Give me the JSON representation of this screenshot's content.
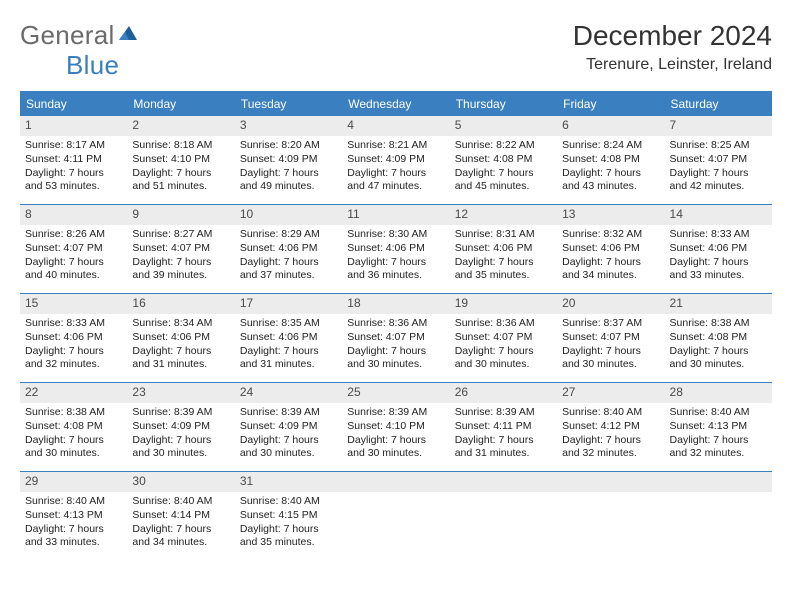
{
  "brand": {
    "part1": "General",
    "part2": "Blue"
  },
  "title": "December 2024",
  "location": "Terenure, Leinster, Ireland",
  "colors": {
    "accent": "#3a7fbf",
    "headerBg": "#3a7fbf",
    "headerText": "#ffffff",
    "dayNumBg": "#ececec",
    "dayNumText": "#4a4a4a",
    "bodyText": "#222222",
    "logoGray": "#6b6b6b"
  },
  "dayNames": [
    "Sunday",
    "Monday",
    "Tuesday",
    "Wednesday",
    "Thursday",
    "Friday",
    "Saturday"
  ],
  "weeks": [
    [
      {
        "n": "1",
        "sunrise": "8:17 AM",
        "sunset": "4:11 PM",
        "daylight": "7 hours and 53 minutes."
      },
      {
        "n": "2",
        "sunrise": "8:18 AM",
        "sunset": "4:10 PM",
        "daylight": "7 hours and 51 minutes."
      },
      {
        "n": "3",
        "sunrise": "8:20 AM",
        "sunset": "4:09 PM",
        "daylight": "7 hours and 49 minutes."
      },
      {
        "n": "4",
        "sunrise": "8:21 AM",
        "sunset": "4:09 PM",
        "daylight": "7 hours and 47 minutes."
      },
      {
        "n": "5",
        "sunrise": "8:22 AM",
        "sunset": "4:08 PM",
        "daylight": "7 hours and 45 minutes."
      },
      {
        "n": "6",
        "sunrise": "8:24 AM",
        "sunset": "4:08 PM",
        "daylight": "7 hours and 43 minutes."
      },
      {
        "n": "7",
        "sunrise": "8:25 AM",
        "sunset": "4:07 PM",
        "daylight": "7 hours and 42 minutes."
      }
    ],
    [
      {
        "n": "8",
        "sunrise": "8:26 AM",
        "sunset": "4:07 PM",
        "daylight": "7 hours and 40 minutes."
      },
      {
        "n": "9",
        "sunrise": "8:27 AM",
        "sunset": "4:07 PM",
        "daylight": "7 hours and 39 minutes."
      },
      {
        "n": "10",
        "sunrise": "8:29 AM",
        "sunset": "4:06 PM",
        "daylight": "7 hours and 37 minutes."
      },
      {
        "n": "11",
        "sunrise": "8:30 AM",
        "sunset": "4:06 PM",
        "daylight": "7 hours and 36 minutes."
      },
      {
        "n": "12",
        "sunrise": "8:31 AM",
        "sunset": "4:06 PM",
        "daylight": "7 hours and 35 minutes."
      },
      {
        "n": "13",
        "sunrise": "8:32 AM",
        "sunset": "4:06 PM",
        "daylight": "7 hours and 34 minutes."
      },
      {
        "n": "14",
        "sunrise": "8:33 AM",
        "sunset": "4:06 PM",
        "daylight": "7 hours and 33 minutes."
      }
    ],
    [
      {
        "n": "15",
        "sunrise": "8:33 AM",
        "sunset": "4:06 PM",
        "daylight": "7 hours and 32 minutes."
      },
      {
        "n": "16",
        "sunrise": "8:34 AM",
        "sunset": "4:06 PM",
        "daylight": "7 hours and 31 minutes."
      },
      {
        "n": "17",
        "sunrise": "8:35 AM",
        "sunset": "4:06 PM",
        "daylight": "7 hours and 31 minutes."
      },
      {
        "n": "18",
        "sunrise": "8:36 AM",
        "sunset": "4:07 PM",
        "daylight": "7 hours and 30 minutes."
      },
      {
        "n": "19",
        "sunrise": "8:36 AM",
        "sunset": "4:07 PM",
        "daylight": "7 hours and 30 minutes."
      },
      {
        "n": "20",
        "sunrise": "8:37 AM",
        "sunset": "4:07 PM",
        "daylight": "7 hours and 30 minutes."
      },
      {
        "n": "21",
        "sunrise": "8:38 AM",
        "sunset": "4:08 PM",
        "daylight": "7 hours and 30 minutes."
      }
    ],
    [
      {
        "n": "22",
        "sunrise": "8:38 AM",
        "sunset": "4:08 PM",
        "daylight": "7 hours and 30 minutes."
      },
      {
        "n": "23",
        "sunrise": "8:39 AM",
        "sunset": "4:09 PM",
        "daylight": "7 hours and 30 minutes."
      },
      {
        "n": "24",
        "sunrise": "8:39 AM",
        "sunset": "4:09 PM",
        "daylight": "7 hours and 30 minutes."
      },
      {
        "n": "25",
        "sunrise": "8:39 AM",
        "sunset": "4:10 PM",
        "daylight": "7 hours and 30 minutes."
      },
      {
        "n": "26",
        "sunrise": "8:39 AM",
        "sunset": "4:11 PM",
        "daylight": "7 hours and 31 minutes."
      },
      {
        "n": "27",
        "sunrise": "8:40 AM",
        "sunset": "4:12 PM",
        "daylight": "7 hours and 32 minutes."
      },
      {
        "n": "28",
        "sunrise": "8:40 AM",
        "sunset": "4:13 PM",
        "daylight": "7 hours and 32 minutes."
      }
    ],
    [
      {
        "n": "29",
        "sunrise": "8:40 AM",
        "sunset": "4:13 PM",
        "daylight": "7 hours and 33 minutes."
      },
      {
        "n": "30",
        "sunrise": "8:40 AM",
        "sunset": "4:14 PM",
        "daylight": "7 hours and 34 minutes."
      },
      {
        "n": "31",
        "sunrise": "8:40 AM",
        "sunset": "4:15 PM",
        "daylight": "7 hours and 35 minutes."
      },
      {
        "empty": true
      },
      {
        "empty": true
      },
      {
        "empty": true
      },
      {
        "empty": true
      }
    ]
  ],
  "labels": {
    "sunrise": "Sunrise: ",
    "sunset": "Sunset: ",
    "daylight": "Daylight: "
  }
}
